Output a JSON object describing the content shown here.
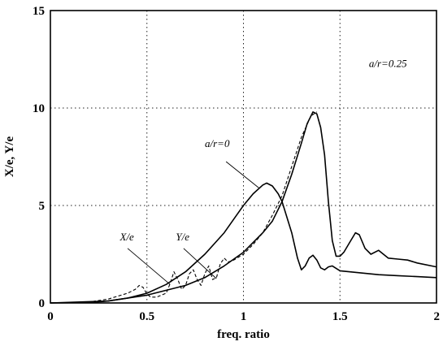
{
  "chart_data": {
    "type": "line",
    "xlabel": "freq. ratio",
    "ylabel": "X/e, Y/e",
    "xlim": [
      0,
      2
    ],
    "ylim": [
      0,
      15
    ],
    "grid": true,
    "x_ticks": [
      "0",
      "0.5",
      "1",
      "1.5",
      "2"
    ],
    "y_ticks": [
      "0",
      "5",
      "10",
      "15"
    ],
    "x_tick_values": [
      0,
      0.5,
      1,
      1.5,
      2
    ],
    "y_tick_values": [
      0,
      5,
      10,
      15
    ],
    "annotations": [
      {
        "text": "a/r=0.25",
        "x": 1.65,
        "y": 12.1
      },
      {
        "text": "a/r=0",
        "x": 0.8,
        "y": 8.0
      },
      {
        "text": "X/e",
        "x": 0.36,
        "y": 3.2
      },
      {
        "text": "Y/e",
        "x": 0.65,
        "y": 3.2
      }
    ],
    "leader_lines": [
      {
        "from": [
          0.91,
          7.25
        ],
        "to": [
          1.08,
          5.9
        ]
      },
      {
        "from": [
          0.4,
          2.8
        ],
        "to": [
          0.62,
          0.95
        ]
      },
      {
        "from": [
          0.69,
          2.8
        ],
        "to": [
          0.86,
          1.25
        ]
      }
    ],
    "series": [
      {
        "style": "solid",
        "x": [
          0,
          0.2,
          0.3,
          0.4,
          0.5,
          0.6,
          0.7,
          0.8,
          0.9,
          0.95,
          1.0,
          1.05,
          1.1,
          1.12,
          1.15,
          1.18,
          1.2,
          1.25,
          1.28,
          1.3,
          1.32,
          1.34,
          1.36,
          1.38,
          1.4,
          1.42,
          1.44,
          1.46,
          1.5,
          1.6,
          1.7,
          1.8,
          1.9,
          2.0
        ],
        "y": [
          0,
          0.02,
          0.1,
          0.25,
          0.5,
          0.95,
          1.6,
          2.5,
          3.6,
          4.3,
          5.0,
          5.6,
          6.05,
          6.15,
          6.0,
          5.6,
          5.2,
          3.6,
          2.3,
          1.7,
          1.9,
          2.3,
          2.45,
          2.2,
          1.8,
          1.7,
          1.85,
          1.9,
          1.65,
          1.55,
          1.45,
          1.4,
          1.35,
          1.3
        ]
      },
      {
        "style": "dashed",
        "x": [
          0,
          0.2,
          0.3,
          0.35,
          0.4,
          0.44,
          0.46,
          0.48,
          0.5,
          0.52,
          0.55,
          0.6,
          0.62,
          0.64,
          0.66,
          0.68,
          0.7,
          0.72,
          0.74,
          0.76,
          0.78,
          0.8,
          0.82,
          0.84,
          0.86,
          0.88,
          0.9,
          0.92,
          0.95,
          1.0,
          1.05,
          1.1,
          1.15,
          1.2,
          1.25,
          1.3,
          1.35,
          1.38
        ],
        "y": [
          0,
          0.05,
          0.2,
          0.35,
          0.5,
          0.7,
          0.9,
          0.8,
          0.45,
          0.3,
          0.3,
          0.5,
          1.0,
          1.6,
          1.2,
          0.7,
          0.9,
          1.5,
          1.7,
          1.2,
          0.9,
          1.5,
          1.9,
          1.2,
          1.3,
          2.0,
          2.3,
          2.1,
          2.2,
          2.5,
          3.0,
          3.6,
          4.5,
          5.5,
          7.0,
          8.5,
          9.6,
          9.8
        ]
      },
      {
        "style": "solid",
        "x": [
          0,
          0.3,
          0.5,
          0.7,
          0.8,
          0.9,
          1.0,
          1.1,
          1.15,
          1.2,
          1.25,
          1.3,
          1.33,
          1.36,
          1.38,
          1.4,
          1.42,
          1.44,
          1.46,
          1.48,
          1.5,
          1.52,
          1.55,
          1.58,
          1.6,
          1.63,
          1.66,
          1.7,
          1.75,
          1.8,
          1.85,
          1.9,
          2.0
        ],
        "y": [
          0,
          0.1,
          0.4,
          0.9,
          1.3,
          1.9,
          2.6,
          3.6,
          4.2,
          5.2,
          6.6,
          8.2,
          9.2,
          9.8,
          9.7,
          9.0,
          7.6,
          5.2,
          3.2,
          2.4,
          2.4,
          2.6,
          3.1,
          3.6,
          3.5,
          2.8,
          2.5,
          2.7,
          2.3,
          2.25,
          2.2,
          2.05,
          1.85
        ]
      }
    ]
  }
}
